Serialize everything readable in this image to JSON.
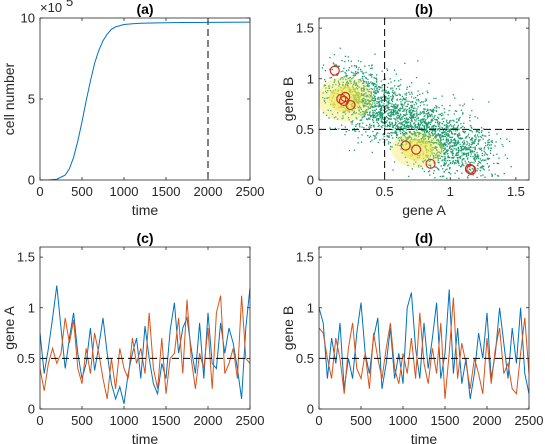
{
  "chart_data": [
    {
      "panel": "a",
      "type": "line",
      "title": "(a)",
      "xlabel": "time",
      "ylabel": "cell number",
      "y_multiplier": "×10",
      "y_exponent": "5",
      "xlim": [
        0,
        2500
      ],
      "ylim": [
        0,
        10
      ],
      "xticks": [
        0,
        500,
        1000,
        1500,
        2000,
        2500
      ],
      "yticks": [
        0,
        5,
        10
      ],
      "vline_x": 2000,
      "series": [
        {
          "color": "#0072BD",
          "x": [
            0,
            100,
            200,
            300,
            350,
            400,
            450,
            500,
            550,
            600,
            650,
            700,
            750,
            800,
            850,
            900,
            1000,
            1100,
            1200,
            1400,
            1700,
            2000,
            2500
          ],
          "y": [
            0,
            0,
            0.05,
            0.3,
            0.7,
            1.4,
            2.4,
            3.6,
            4.9,
            6.1,
            7.2,
            8.0,
            8.6,
            9.0,
            9.3,
            9.45,
            9.6,
            9.65,
            9.68,
            9.7,
            9.72,
            9.73,
            9.75
          ]
        }
      ]
    },
    {
      "panel": "b",
      "type": "scatter",
      "title": "(b)",
      "xlabel": "gene A",
      "ylabel": "gene B",
      "xlim": [
        0,
        1.6
      ],
      "ylim": [
        0,
        1.6
      ],
      "xticks": [
        0,
        0.5,
        1,
        1.5
      ],
      "yticks": [
        0,
        0.5,
        1,
        1.5
      ],
      "xtick_labels": [
        "0",
        "0.5",
        "1",
        "1.5"
      ],
      "ytick_labels": [
        "0",
        "0.5",
        "1",
        "1.5"
      ],
      "threshold_x": 0.5,
      "threshold_y": 0.5,
      "cloud_color": "#1a9a6c",
      "density_color": "#f0e442",
      "highlight_color": "#d62d20",
      "highlighted_cells": [
        {
          "x": 0.12,
          "y": 1.08
        },
        {
          "x": 0.17,
          "y": 0.8
        },
        {
          "x": 0.2,
          "y": 0.82
        },
        {
          "x": 0.19,
          "y": 0.78
        },
        {
          "x": 0.24,
          "y": 0.74
        },
        {
          "x": 0.66,
          "y": 0.34
        },
        {
          "x": 0.74,
          "y": 0.3
        },
        {
          "x": 0.85,
          "y": 0.16
        },
        {
          "x": 1.15,
          "y": 0.11
        },
        {
          "x": 1.16,
          "y": 0.1
        }
      ]
    },
    {
      "panel": "c",
      "type": "line",
      "title": "(c)",
      "xlabel": "time",
      "ylabel": "gene A",
      "xlim": [
        0,
        2500
      ],
      "ylim": [
        0,
        1.6
      ],
      "xticks": [
        0,
        500,
        1000,
        1500,
        2000,
        2500
      ],
      "yticks": [
        0,
        0.5,
        1,
        1.5
      ],
      "xtick_labels": [
        "0",
        "500",
        "1000",
        "1500",
        "2000",
        "2500"
      ],
      "ytick_labels": [
        "0",
        "0.5",
        "1",
        "1.5"
      ],
      "hline_y": 0.5,
      "series": [
        {
          "color": "#0072BD",
          "x": [
            0,
            50,
            100,
            150,
            200,
            250,
            300,
            350,
            400,
            450,
            500,
            550,
            600,
            650,
            700,
            750,
            800,
            850,
            900,
            950,
            1000,
            1050,
            1100,
            1150,
            1200,
            1250,
            1300,
            1350,
            1400,
            1450,
            1500,
            1550,
            1600,
            1650,
            1700,
            1750,
            1800,
            1850,
            1900,
            1950,
            2000,
            2050,
            2100,
            2150,
            2200,
            2250,
            2300,
            2350,
            2400,
            2450,
            2500
          ],
          "y": [
            0.75,
            0.35,
            0.6,
            0.9,
            1.22,
            0.8,
            0.4,
            0.7,
            0.95,
            0.55,
            0.3,
            0.45,
            0.8,
            0.38,
            0.62,
            0.9,
            0.55,
            0.25,
            0.1,
            0.22,
            0.05,
            0.35,
            0.55,
            0.7,
            0.3,
            0.82,
            0.5,
            0.25,
            0.15,
            0.45,
            0.3,
            0.78,
            1.05,
            0.55,
            0.8,
            0.9,
            0.6,
            0.35,
            0.85,
            0.3,
            0.95,
            0.45,
            0.4,
            0.85,
            0.55,
            0.8,
            0.65,
            0.4,
            0.1,
            0.8,
            1.2
          ]
        },
        {
          "color": "#D95319",
          "x": [
            0,
            50,
            100,
            150,
            200,
            250,
            300,
            350,
            400,
            450,
            500,
            550,
            600,
            650,
            700,
            750,
            800,
            850,
            900,
            950,
            1000,
            1050,
            1100,
            1150,
            1200,
            1250,
            1300,
            1350,
            1400,
            1450,
            1500,
            1550,
            1600,
            1650,
            1700,
            1750,
            1800,
            1850,
            1900,
            1950,
            2000,
            2050,
            2100,
            2150,
            2200,
            2250,
            2300,
            2350,
            2400,
            2450,
            2500
          ],
          "y": [
            0.4,
            0.18,
            0.45,
            0.6,
            0.45,
            0.55,
            0.9,
            0.65,
            0.88,
            0.4,
            0.25,
            0.6,
            0.35,
            0.75,
            0.55,
            0.3,
            0.1,
            0.5,
            0.2,
            0.6,
            0.4,
            0.3,
            0.7,
            0.45,
            0.6,
            0.35,
            0.95,
            0.4,
            0.2,
            0.7,
            0.15,
            0.5,
            0.55,
            0.9,
            0.35,
            1.08,
            0.5,
            0.2,
            0.55,
            0.4,
            0.8,
            0.2,
            0.95,
            1.12,
            0.35,
            0.45,
            0.6,
            0.3,
            1.12,
            0.5,
            0.45
          ]
        }
      ]
    },
    {
      "panel": "d",
      "type": "line",
      "title": "(d)",
      "xlabel": "time",
      "ylabel": "gene B",
      "xlim": [
        0,
        2500
      ],
      "ylim": [
        0,
        1.6
      ],
      "xticks": [
        0,
        500,
        1000,
        1500,
        2000,
        2500
      ],
      "yticks": [
        0,
        0.5,
        1,
        1.5
      ],
      "xtick_labels": [
        "0",
        "500",
        "1000",
        "1500",
        "2000",
        "2500"
      ],
      "ytick_labels": [
        "0",
        "0.5",
        "1",
        "1.5"
      ],
      "hline_y": 0.5,
      "series": [
        {
          "color": "#0072BD",
          "x": [
            0,
            50,
            100,
            150,
            200,
            250,
            300,
            350,
            400,
            450,
            500,
            550,
            600,
            650,
            700,
            750,
            800,
            850,
            900,
            950,
            1000,
            1050,
            1100,
            1150,
            1200,
            1250,
            1300,
            1350,
            1400,
            1450,
            1500,
            1550,
            1600,
            1650,
            1700,
            1750,
            1800,
            1850,
            1900,
            1950,
            2000,
            2050,
            2100,
            2150,
            2200,
            2250,
            2300,
            2350,
            2400,
            2450,
            2500
          ],
          "y": [
            1.0,
            0.85,
            0.3,
            0.7,
            0.45,
            0.85,
            0.2,
            0.5,
            0.3,
            0.75,
            1.05,
            0.55,
            0.35,
            0.7,
            0.9,
            0.2,
            0.45,
            0.8,
            0.3,
            0.55,
            0.25,
            1.0,
            1.15,
            0.6,
            0.3,
            0.85,
            0.4,
            0.7,
            1.05,
            0.3,
            0.55,
            1.18,
            0.35,
            0.8,
            0.25,
            0.5,
            0.1,
            0.35,
            0.75,
            0.5,
            0.95,
            0.3,
            0.55,
            1.0,
            0.65,
            0.3,
            0.8,
            0.45,
            1.0,
            0.35,
            0.15
          ]
        },
        {
          "color": "#D95319",
          "x": [
            0,
            50,
            100,
            150,
            200,
            250,
            300,
            350,
            400,
            450,
            500,
            550,
            600,
            650,
            700,
            750,
            800,
            850,
            900,
            950,
            1000,
            1050,
            1100,
            1150,
            1200,
            1250,
            1300,
            1350,
            1400,
            1450,
            1500,
            1550,
            1600,
            1650,
            1700,
            1750,
            1800,
            1850,
            1900,
            1950,
            2000,
            2050,
            2100,
            2150,
            2200,
            2250,
            2300,
            2350,
            2400,
            2450,
            2500
          ],
          "y": [
            0.8,
            0.75,
            0.5,
            0.3,
            0.7,
            0.5,
            0.15,
            0.6,
            0.85,
            0.4,
            0.3,
            0.55,
            0.2,
            0.75,
            0.5,
            0.3,
            0.6,
            0.85,
            0.4,
            0.25,
            0.55,
            0.35,
            0.7,
            0.3,
            0.95,
            0.45,
            0.25,
            0.6,
            0.35,
            0.85,
            0.1,
            0.55,
            1.1,
            0.3,
            0.65,
            0.45,
            0.2,
            0.5,
            0.35,
            0.15,
            0.7,
            0.25,
            0.6,
            0.8,
            0.35,
            0.45,
            0.2,
            0.15,
            0.55,
            0.9,
            0.35
          ]
        }
      ]
    }
  ]
}
